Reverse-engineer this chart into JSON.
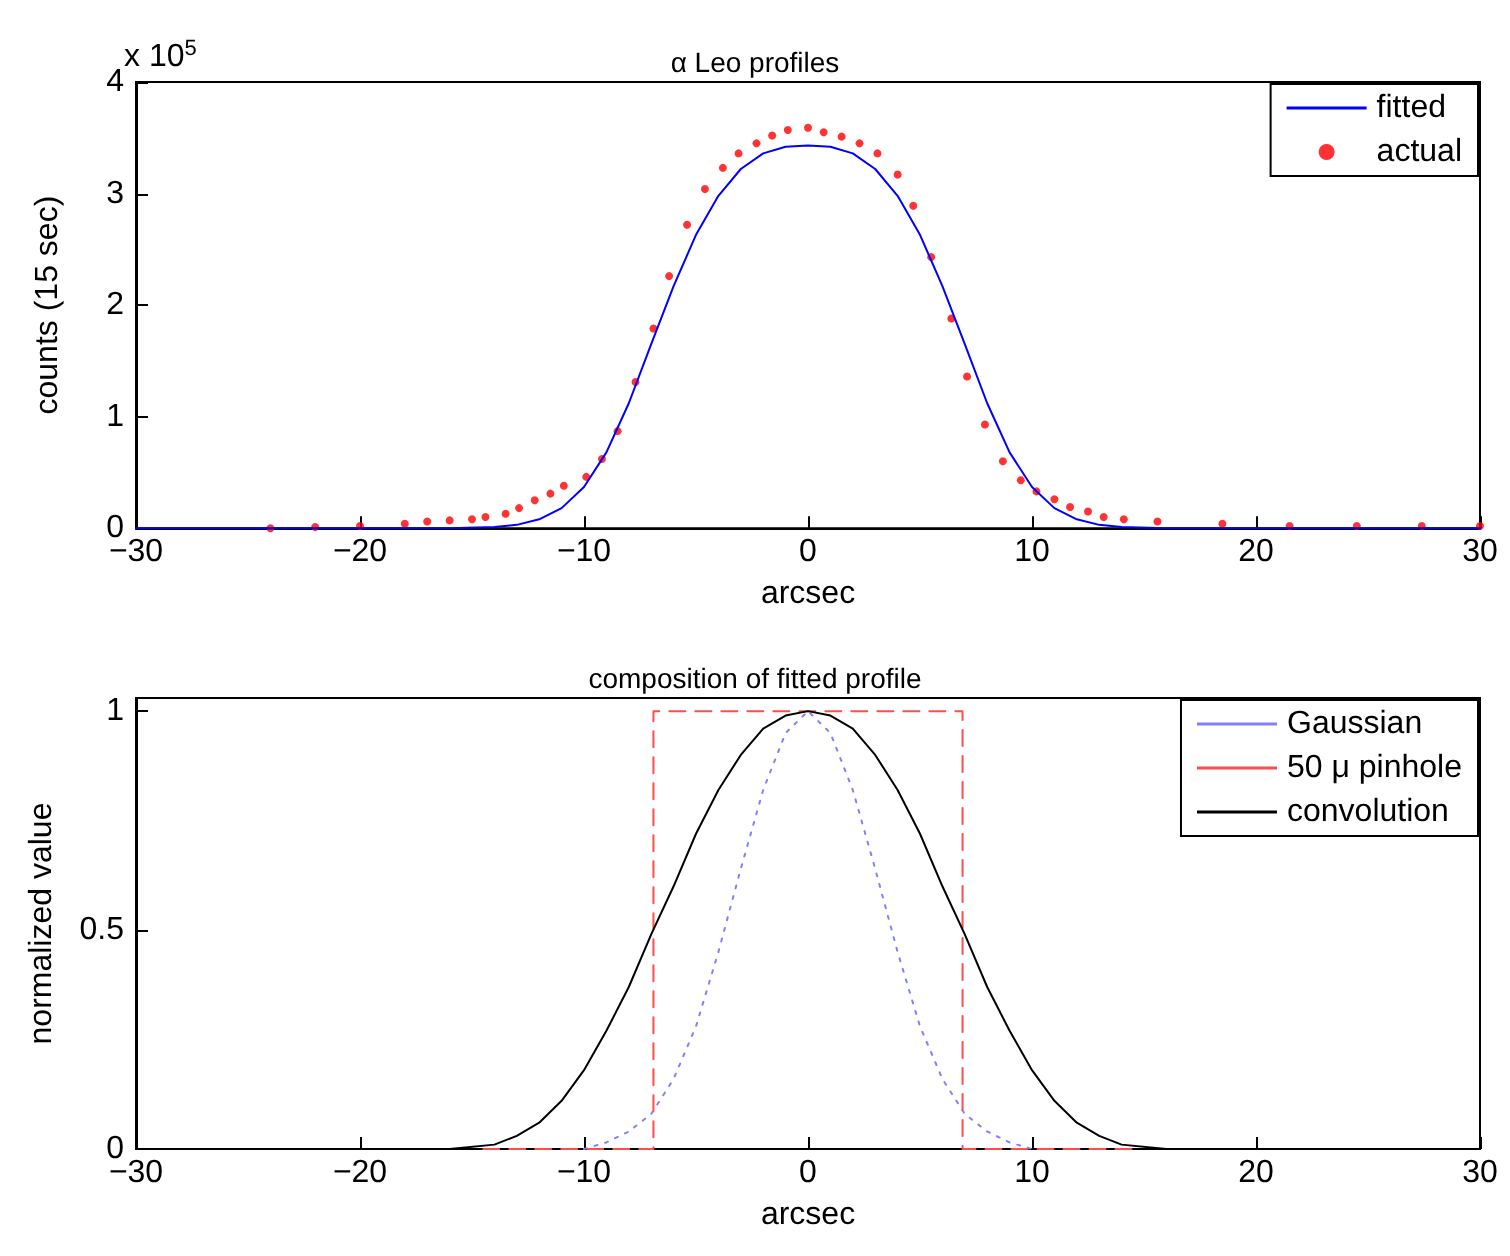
{
  "chart_data": [
    {
      "type": "line",
      "title": "α Leo profiles",
      "xlabel": "arcsec",
      "ylabel": "counts (15 sec)",
      "annotations": [
        "x 10$^{5}$"
      ],
      "xlim": [
        -30,
        30
      ],
      "xticks": [
        -30,
        -20,
        -10,
        0,
        10,
        20,
        30
      ],
      "ylim": [
        0,
        4
      ],
      "yticks": [
        0,
        1,
        2,
        3,
        4
      ],
      "legend": "top right",
      "grid": false,
      "series": [
        {
          "name": "fitted",
          "color": "#0000ff",
          "line_style": "solid",
          "marker": "none",
          "x": [
            -30,
            -16,
            -14,
            -13,
            -12,
            -11,
            -10,
            -9,
            -8,
            -7,
            -6,
            -5,
            -4,
            -3,
            -2,
            -1,
            0,
            1,
            2,
            3,
            4,
            5,
            6,
            7,
            8,
            9,
            10,
            11,
            12,
            13,
            14,
            16,
            30
          ],
          "values": [
            0,
            0,
            0.01,
            0.03,
            0.08,
            0.18,
            0.37,
            0.68,
            1.12,
            1.65,
            2.17,
            2.63,
            2.98,
            3.22,
            3.36,
            3.42,
            3.43,
            3.42,
            3.36,
            3.22,
            2.98,
            2.63,
            2.17,
            1.65,
            1.12,
            0.68,
            0.37,
            0.18,
            0.08,
            0.03,
            0.01,
            0,
            0
          ]
        },
        {
          "name": "actual",
          "color": "#ff0000",
          "type": "scatter",
          "marker": "circle",
          "x": [
            -24,
            -22,
            -20,
            -18,
            -17,
            -16,
            -15,
            -14.4,
            -13.5,
            -12.9,
            -12.2,
            -11.5,
            -10.9,
            -9.9,
            -9.2,
            -8.5,
            -7.7,
            -6.9,
            -6.2,
            -5.4,
            -4.6,
            -3.8,
            -3.1,
            -2.3,
            -1.6,
            -0.9,
            0,
            0.7,
            1.5,
            2.3,
            3.1,
            4,
            4.7,
            5.5,
            6.4,
            7.1,
            7.9,
            8.7,
            9.5,
            10.2,
            11,
            11.7,
            12.5,
            13.2,
            14.1,
            15.6,
            18.5,
            21.5,
            24.5,
            27.4,
            30
          ],
          "values": [
            0,
            0.01,
            0.02,
            0.04,
            0.06,
            0.07,
            0.08,
            0.1,
            0.13,
            0.18,
            0.25,
            0.31,
            0.38,
            0.46,
            0.62,
            0.87,
            1.31,
            1.79,
            2.26,
            2.72,
            3.04,
            3.23,
            3.36,
            3.45,
            3.52,
            3.57,
            3.59,
            3.55,
            3.51,
            3.45,
            3.36,
            3.17,
            2.89,
            2.43,
            1.88,
            1.36,
            0.93,
            0.6,
            0.43,
            0.33,
            0.26,
            0.19,
            0.15,
            0.1,
            0.08,
            0.06,
            0.04,
            0.02,
            0.02,
            0.02,
            0.02
          ]
        }
      ]
    },
    {
      "type": "line",
      "title": "composition of fitted profile",
      "xlabel": "arcsec",
      "ylabel": "normalized value",
      "xlim": [
        -30,
        30
      ],
      "xticks": [
        -30,
        -20,
        -10,
        0,
        10,
        20,
        30
      ],
      "ylim": [
        0,
        1.03
      ],
      "yticks": [
        0,
        0.5,
        1
      ],
      "legend": "top right",
      "grid": false,
      "series": [
        {
          "name": "Gaussian",
          "color": "#8080ff",
          "line_style": "dotted",
          "marker": "none",
          "x": [
            -10,
            -9,
            -8,
            -7,
            -6,
            -5,
            -4,
            -3,
            -2,
            -1,
            0,
            1,
            2,
            3,
            4,
            5,
            6,
            7,
            8,
            9,
            10
          ],
          "values": [
            0,
            0.015,
            0.04,
            0.08,
            0.16,
            0.28,
            0.45,
            0.64,
            0.82,
            0.95,
            1,
            0.95,
            0.82,
            0.64,
            0.45,
            0.28,
            0.16,
            0.08,
            0.04,
            0.015,
            0
          ]
        },
        {
          "name": "50 μ pinhole",
          "color": "#ff4d4d",
          "line_style": "dashed",
          "marker": "none",
          "x": [
            -14.5,
            -6.9,
            -6.9,
            6.9,
            6.9,
            14.5
          ],
          "values": [
            0,
            0,
            1,
            1,
            0,
            0
          ]
        },
        {
          "name": "convolution",
          "color": "#000000",
          "line_style": "solid",
          "marker": "none",
          "x": [
            -16,
            -14,
            -13,
            -12,
            -11,
            -10,
            -9,
            -8,
            -7,
            -6,
            -5,
            -4,
            -3,
            -2,
            -1,
            0,
            1,
            2,
            3,
            4,
            5,
            6,
            7,
            8,
            9,
            10,
            11,
            12,
            13,
            14,
            16
          ],
          "values": [
            0,
            0.01,
            0.03,
            0.06,
            0.11,
            0.18,
            0.27,
            0.37,
            0.49,
            0.6,
            0.72,
            0.82,
            0.9,
            0.96,
            0.99,
            1,
            0.99,
            0.96,
            0.9,
            0.82,
            0.72,
            0.6,
            0.49,
            0.37,
            0.27,
            0.18,
            0.11,
            0.06,
            0.03,
            0.01,
            0
          ]
        }
      ]
    }
  ]
}
